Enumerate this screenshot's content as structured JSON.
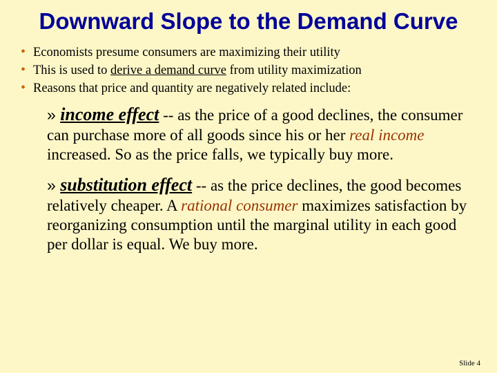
{
  "colors": {
    "background": "#fdf7c8",
    "title_color": "#000099",
    "bullet_color": "#cc6600",
    "italic_highlight": "#993300",
    "text_color": "#000000"
  },
  "typography": {
    "title_fontsize": 33,
    "bullet_fontsize": 18.5,
    "sub_fontsize": 23,
    "term_fontsize": 26,
    "footer_fontsize": 11,
    "title_font": "Comic Sans MS",
    "body_font": "Times New Roman"
  },
  "title": "Downward Slope to the Demand Curve",
  "bullets": [
    {
      "pre": "Economists presume consumers are maximizing their utility",
      "underline": "",
      "post": ""
    },
    {
      "pre": "This is used to ",
      "underline": "derive a demand curve",
      "post": " from utility maximization"
    },
    {
      "pre": "Reasons that price and quantity are negatively related include:",
      "underline": "",
      "post": ""
    }
  ],
  "sub_items": [
    {
      "marker": "» ",
      "term": "income effect",
      "lead": " -- as the price of a good declines, the consumer can purchase more of all goods since his or her ",
      "ital": "real income",
      "tail": " increased. So as the price falls, we typically buy more."
    },
    {
      "marker": "» ",
      "term": "substitution effect",
      "lead": " -- as the price declines, the good becomes relatively cheaper.  A ",
      "ital": "rational consumer",
      "tail": " maximizes satisfaction by reorganizing consumption until the marginal utility in each good per dollar is equal.  We buy more."
    }
  ],
  "footer": "Slide 4"
}
